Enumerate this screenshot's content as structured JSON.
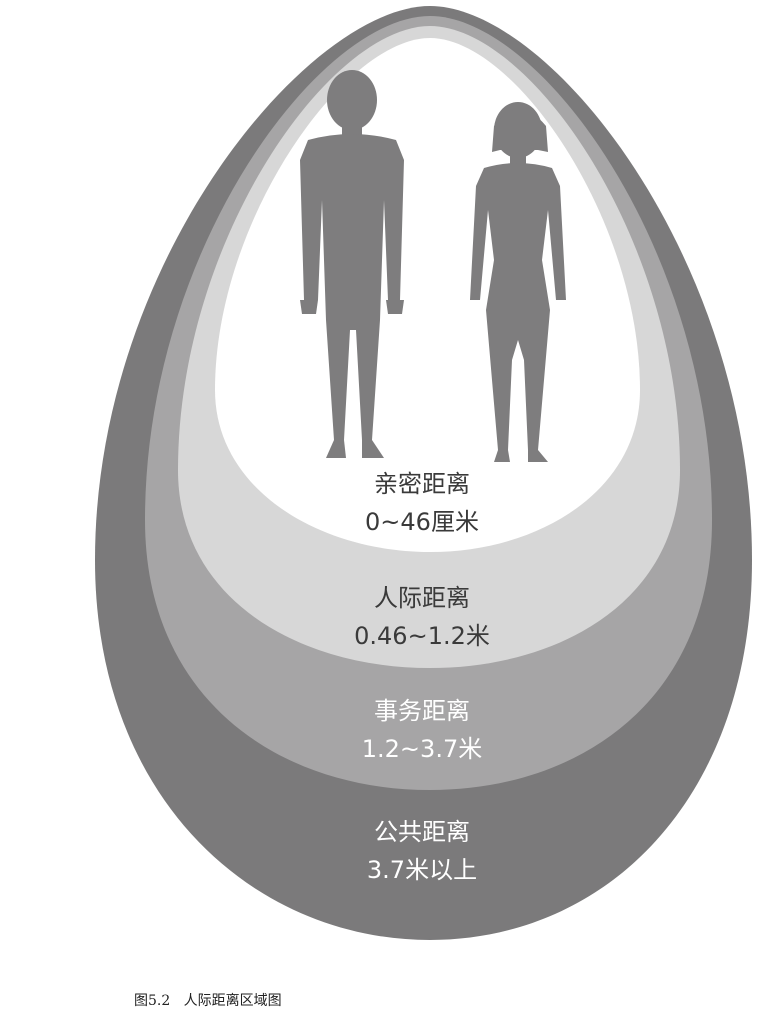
{
  "zones": [
    {
      "name": "公共距离",
      "range": "3.7米以上",
      "color": "#7b7a7b"
    },
    {
      "name": "事务距离",
      "range": "1.2~3.7米",
      "color": "#a6a5a6"
    },
    {
      "name": "人际距离",
      "range": "0.46~1.2米",
      "color": "#d7d7d7"
    },
    {
      "name": "亲密距离",
      "range": "0~46厘米",
      "color": "#ffffff"
    }
  ],
  "figure_color": "#7e7d7e",
  "caption": {
    "number": "图5.2",
    "title": "人际距离区域图"
  }
}
